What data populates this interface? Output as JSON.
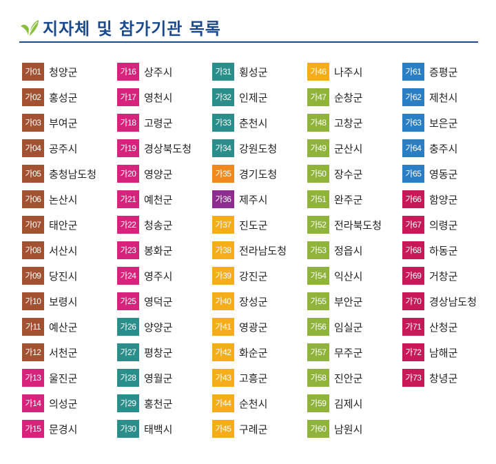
{
  "title": "지자체 및 참가기관 목록",
  "colors": {
    "title": "#1a4a8c",
    "leaf": "#8cbf3f",
    "brown": "#a35231",
    "magenta": "#d6237c",
    "teal": "#2a8e8b",
    "orange": "#f08a1e",
    "purple": "#8e2d8f",
    "yellow": "#f5ad1a",
    "olive": "#8fb33b",
    "blue": "#2a7fc4",
    "crimson": "#c71858"
  },
  "items": [
    {
      "code": "가01",
      "name": "청양군",
      "color": "brown"
    },
    {
      "code": "가02",
      "name": "홍성군",
      "color": "brown"
    },
    {
      "code": "가03",
      "name": "부여군",
      "color": "brown"
    },
    {
      "code": "가04",
      "name": "공주시",
      "color": "brown"
    },
    {
      "code": "가05",
      "name": "충청남도청",
      "color": "brown"
    },
    {
      "code": "가06",
      "name": "논산시",
      "color": "brown"
    },
    {
      "code": "가07",
      "name": "태안군",
      "color": "brown"
    },
    {
      "code": "가08",
      "name": "서산시",
      "color": "brown"
    },
    {
      "code": "가09",
      "name": "당진시",
      "color": "brown"
    },
    {
      "code": "가10",
      "name": "보령시",
      "color": "brown"
    },
    {
      "code": "가11",
      "name": "예산군",
      "color": "brown"
    },
    {
      "code": "가12",
      "name": "서천군",
      "color": "brown"
    },
    {
      "code": "가13",
      "name": "울진군",
      "color": "magenta"
    },
    {
      "code": "가14",
      "name": "의성군",
      "color": "magenta"
    },
    {
      "code": "가15",
      "name": "문경시",
      "color": "magenta"
    },
    {
      "code": "가16",
      "name": "상주시",
      "color": "magenta"
    },
    {
      "code": "가17",
      "name": "영천시",
      "color": "magenta"
    },
    {
      "code": "가18",
      "name": "고령군",
      "color": "magenta"
    },
    {
      "code": "가19",
      "name": "경상북도청",
      "color": "magenta"
    },
    {
      "code": "가20",
      "name": "영양군",
      "color": "magenta"
    },
    {
      "code": "가21",
      "name": "예천군",
      "color": "magenta"
    },
    {
      "code": "가22",
      "name": "청송군",
      "color": "magenta"
    },
    {
      "code": "가23",
      "name": "봉화군",
      "color": "magenta"
    },
    {
      "code": "가24",
      "name": "영주시",
      "color": "magenta"
    },
    {
      "code": "가25",
      "name": "영덕군",
      "color": "magenta"
    },
    {
      "code": "가26",
      "name": "양양군",
      "color": "teal"
    },
    {
      "code": "가27",
      "name": "평창군",
      "color": "teal"
    },
    {
      "code": "가28",
      "name": "영월군",
      "color": "teal"
    },
    {
      "code": "가29",
      "name": "홍천군",
      "color": "teal"
    },
    {
      "code": "가30",
      "name": "태백시",
      "color": "teal"
    },
    {
      "code": "가31",
      "name": "횡성군",
      "color": "teal"
    },
    {
      "code": "가32",
      "name": "인제군",
      "color": "teal"
    },
    {
      "code": "가33",
      "name": "춘천시",
      "color": "teal"
    },
    {
      "code": "가34",
      "name": "강원도청",
      "color": "teal"
    },
    {
      "code": "가35",
      "name": "경기도청",
      "color": "orange"
    },
    {
      "code": "가36",
      "name": "제주시",
      "color": "purple"
    },
    {
      "code": "가37",
      "name": "진도군",
      "color": "yellow"
    },
    {
      "code": "가38",
      "name": "전라남도청",
      "color": "yellow"
    },
    {
      "code": "가39",
      "name": "강진군",
      "color": "yellow"
    },
    {
      "code": "가40",
      "name": "장성군",
      "color": "yellow"
    },
    {
      "code": "가41",
      "name": "영광군",
      "color": "yellow"
    },
    {
      "code": "가42",
      "name": "화순군",
      "color": "yellow"
    },
    {
      "code": "가43",
      "name": "고흥군",
      "color": "yellow"
    },
    {
      "code": "가44",
      "name": "순천시",
      "color": "yellow"
    },
    {
      "code": "가45",
      "name": "구례군",
      "color": "yellow"
    },
    {
      "code": "가46",
      "name": "나주시",
      "color": "yellow"
    },
    {
      "code": "가47",
      "name": "순창군",
      "color": "olive"
    },
    {
      "code": "가48",
      "name": "고창군",
      "color": "olive"
    },
    {
      "code": "가49",
      "name": "군산시",
      "color": "olive"
    },
    {
      "code": "가50",
      "name": "장수군",
      "color": "olive"
    },
    {
      "code": "가51",
      "name": "완주군",
      "color": "olive"
    },
    {
      "code": "가52",
      "name": "전라북도청",
      "color": "olive"
    },
    {
      "code": "가53",
      "name": "정읍시",
      "color": "olive"
    },
    {
      "code": "가54",
      "name": "익산시",
      "color": "olive"
    },
    {
      "code": "가55",
      "name": "부안군",
      "color": "olive"
    },
    {
      "code": "가56",
      "name": "임실군",
      "color": "olive"
    },
    {
      "code": "가57",
      "name": "무주군",
      "color": "olive"
    },
    {
      "code": "가58",
      "name": "진안군",
      "color": "olive"
    },
    {
      "code": "가59",
      "name": "김제시",
      "color": "olive"
    },
    {
      "code": "가60",
      "name": "남원시",
      "color": "olive"
    },
    {
      "code": "가61",
      "name": "증평군",
      "color": "blue"
    },
    {
      "code": "가62",
      "name": "제천시",
      "color": "blue"
    },
    {
      "code": "가63",
      "name": "보은군",
      "color": "blue"
    },
    {
      "code": "가64",
      "name": "충주시",
      "color": "blue"
    },
    {
      "code": "가65",
      "name": "영동군",
      "color": "blue"
    },
    {
      "code": "가66",
      "name": "함양군",
      "color": "crimson"
    },
    {
      "code": "가67",
      "name": "의령군",
      "color": "crimson"
    },
    {
      "code": "가68",
      "name": "하동군",
      "color": "crimson"
    },
    {
      "code": "가69",
      "name": "거창군",
      "color": "crimson"
    },
    {
      "code": "가70",
      "name": "경상남도청",
      "color": "crimson"
    },
    {
      "code": "가71",
      "name": "산청군",
      "color": "crimson"
    },
    {
      "code": "가72",
      "name": "남해군",
      "color": "crimson"
    },
    {
      "code": "가73",
      "name": "창녕군",
      "color": "crimson"
    }
  ]
}
